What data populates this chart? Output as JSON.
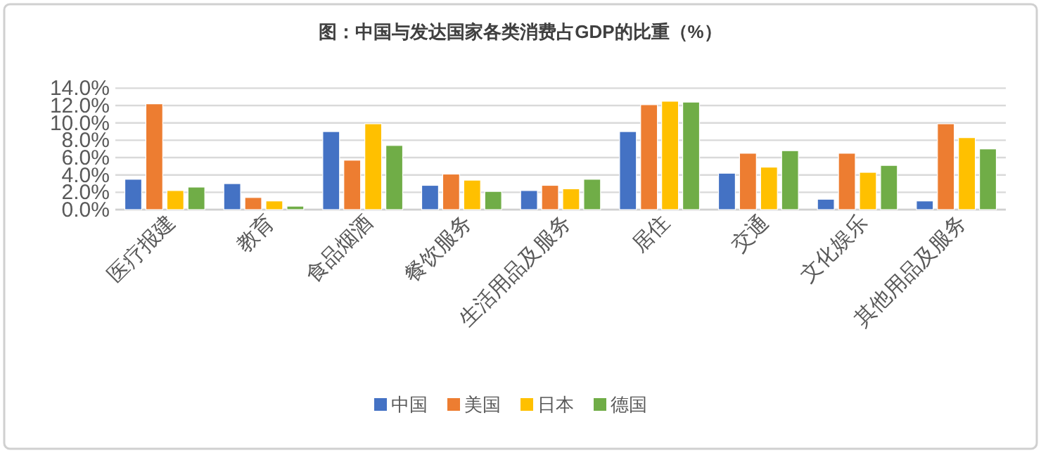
{
  "chart_data": {
    "type": "bar",
    "title": "图：中国与发达国家各类消费占GDP的比重（%）",
    "categories": [
      "医疗报建",
      "教育",
      "食品烟酒",
      "餐饮服务",
      "生活用品及服务",
      "居住",
      "交通",
      "文化娱乐",
      "其他用品及服务"
    ],
    "series": [
      {
        "name": "中国",
        "color": "#4472c4",
        "values": [
          3.5,
          3.0,
          9.0,
          2.8,
          2.2,
          9.0,
          4.2,
          1.2,
          1.0
        ]
      },
      {
        "name": "美国",
        "color": "#ed7d31",
        "values": [
          12.2,
          1.4,
          5.7,
          4.1,
          2.8,
          12.1,
          6.5,
          6.5,
          9.9
        ]
      },
      {
        "name": "日本",
        "color": "#ffc000",
        "values": [
          2.2,
          1.0,
          9.9,
          3.4,
          2.4,
          12.5,
          4.9,
          4.3,
          8.3
        ]
      },
      {
        "name": "德国",
        "color": "#70ad47",
        "values": [
          2.6,
          0.4,
          7.4,
          2.1,
          3.5,
          12.4,
          6.8,
          5.1,
          7.0
        ]
      }
    ],
    "ylim": [
      0,
      14
    ],
    "yticks": [
      {
        "value": 0,
        "label": "0.0%"
      },
      {
        "value": 2,
        "label": "2.0%"
      },
      {
        "value": 4,
        "label": "4.0%"
      },
      {
        "value": 6,
        "label": "6.0%"
      },
      {
        "value": 8,
        "label": "8.0%"
      },
      {
        "value": 10,
        "label": "10.0%"
      },
      {
        "value": 12,
        "label": "12.0%"
      },
      {
        "value": 14,
        "label": "14.0%"
      }
    ],
    "grid": "y",
    "legend": "bottom"
  }
}
